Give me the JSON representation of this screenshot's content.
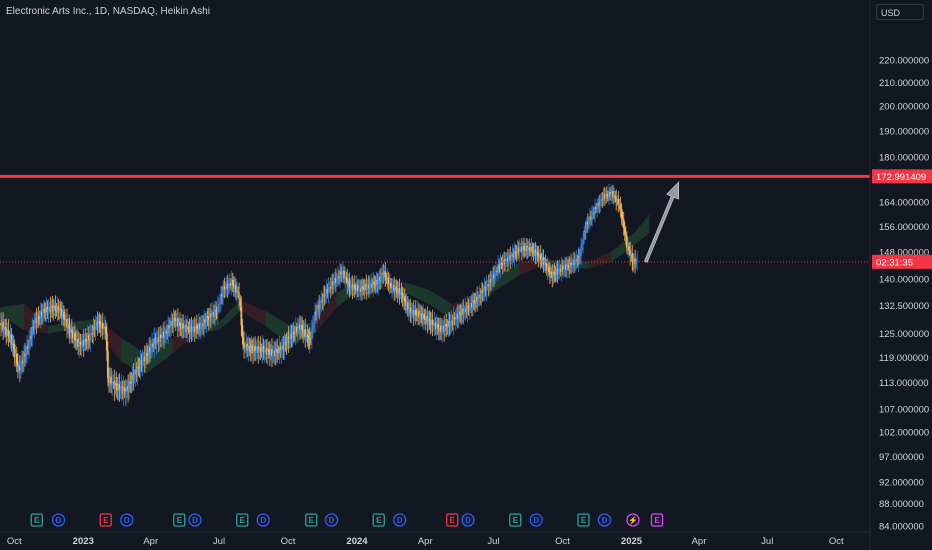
{
  "header": {
    "title": "Electronic Arts Inc., 1D, NASDAQ, Heikin Ashi",
    "currency": "USD"
  },
  "colors": {
    "background": "#131722",
    "candle_up": "#2f7dd9",
    "candle_down": "#f0b657",
    "cloud_green": "#1e3b2c",
    "cloud_red": "#3b1e24",
    "resistance_line": "#f23645",
    "arrow": "#9598a1",
    "earnings": "#26a69a",
    "earnings_red": "#f23645",
    "dividend": "#2962ff",
    "split": "#e040fb"
  },
  "price_labels": {
    "resistance": "172.991409",
    "countdown": "02:31:35"
  },
  "events": [
    {
      "type": "E",
      "x": "2022-10-31",
      "kind": "earnings"
    },
    {
      "type": "D",
      "x": "2022-11-29",
      "kind": "dividend"
    },
    {
      "type": "E",
      "x": "2023-01-31",
      "kind": "earnings_red"
    },
    {
      "type": "D",
      "x": "2023-02-28",
      "kind": "dividend"
    },
    {
      "type": "E",
      "x": "2023-05-09",
      "kind": "earnings"
    },
    {
      "type": "D",
      "x": "2023-05-30",
      "kind": "dividend"
    },
    {
      "type": "E",
      "x": "2023-08-01",
      "kind": "earnings"
    },
    {
      "type": "D",
      "x": "2023-08-29",
      "kind": "dividend"
    },
    {
      "type": "E",
      "x": "2023-11-01",
      "kind": "earnings"
    },
    {
      "type": "D",
      "x": "2023-11-28",
      "kind": "dividend"
    },
    {
      "type": "E",
      "x": "2024-01-30",
      "kind": "earnings"
    },
    {
      "type": "D",
      "x": "2024-02-27",
      "kind": "dividend"
    },
    {
      "type": "E",
      "x": "2024-05-07",
      "kind": "earnings_red"
    },
    {
      "type": "D",
      "x": "2024-05-28",
      "kind": "dividend"
    },
    {
      "type": "E",
      "x": "2024-07-30",
      "kind": "earnings"
    },
    {
      "type": "D",
      "x": "2024-08-27",
      "kind": "dividend"
    },
    {
      "type": "E",
      "x": "2024-10-29",
      "kind": "earnings"
    },
    {
      "type": "D",
      "x": "2024-11-26",
      "kind": "dividend"
    },
    {
      "type": "S",
      "x": "2025-01-03",
      "kind": "split"
    },
    {
      "type": "E",
      "x": "2025-02-04",
      "kind": "split"
    }
  ],
  "chart_data": {
    "type": "line",
    "title": "Electronic Arts Inc., 1D, NASDAQ, Heikin Ashi",
    "xlabel": "",
    "ylabel": "",
    "scale": "log",
    "x_ticks": [
      {
        "label": "Oct",
        "date": "2022-10-01",
        "bold": false
      },
      {
        "label": "2023",
        "date": "2023-01-01",
        "bold": true
      },
      {
        "label": "Apr",
        "date": "2023-04-01",
        "bold": false
      },
      {
        "label": "Jul",
        "date": "2023-07-01",
        "bold": false
      },
      {
        "label": "Oct",
        "date": "2023-10-01",
        "bold": false
      },
      {
        "label": "2024",
        "date": "2024-01-01",
        "bold": true
      },
      {
        "label": "Apr",
        "date": "2024-04-01",
        "bold": false
      },
      {
        "label": "Jul",
        "date": "2024-07-01",
        "bold": false
      },
      {
        "label": "Oct",
        "date": "2024-10-01",
        "bold": false
      },
      {
        "label": "2025",
        "date": "2025-01-01",
        "bold": true
      },
      {
        "label": "Apr",
        "date": "2025-04-01",
        "bold": false
      },
      {
        "label": "Jul",
        "date": "2025-07-01",
        "bold": false
      },
      {
        "label": "Oct",
        "date": "2025-10-01",
        "bold": false
      }
    ],
    "y_ticks": [
      "220.000000",
      "210.000000",
      "200.000000",
      "190.000000",
      "180.000000",
      "172.000000",
      "164.000000",
      "156.000000",
      "148.000000",
      "140.000000",
      "132.500000",
      "125.000000",
      "119.000000",
      "113.000000",
      "107.000000",
      "102.000000",
      "97.000000",
      "92.000000",
      "88.000000",
      "84.000000"
    ],
    "ylim": [
      83,
      235
    ],
    "xlim": [
      "2022-09-12",
      "2025-11-15"
    ],
    "series": [
      {
        "type": "heikin_ashi_close",
        "points": [
          [
            "2022-09-12",
            128
          ],
          [
            "2022-09-26",
            124
          ],
          [
            "2022-10-07",
            116
          ],
          [
            "2022-10-18",
            121
          ],
          [
            "2022-10-28",
            128
          ],
          [
            "2022-11-10",
            131
          ],
          [
            "2022-11-22",
            132
          ],
          [
            "2022-12-02",
            131
          ],
          [
            "2022-12-14",
            126
          ],
          [
            "2022-12-27",
            122
          ],
          [
            "2023-01-09",
            124
          ],
          [
            "2023-01-20",
            128
          ],
          [
            "2023-01-31",
            126
          ],
          [
            "2023-02-03",
            114
          ],
          [
            "2023-02-14",
            112
          ],
          [
            "2023-02-27",
            111
          ],
          [
            "2023-03-10",
            115
          ],
          [
            "2023-03-24",
            119
          ],
          [
            "2023-04-06",
            123
          ],
          [
            "2023-04-20",
            125
          ],
          [
            "2023-05-03",
            129
          ],
          [
            "2023-05-10",
            127
          ],
          [
            "2023-05-24",
            126
          ],
          [
            "2023-06-07",
            127
          ],
          [
            "2023-06-16",
            129
          ],
          [
            "2023-06-28",
            131
          ],
          [
            "2023-07-07",
            137
          ],
          [
            "2023-07-18",
            139
          ],
          [
            "2023-07-28",
            135
          ],
          [
            "2023-08-02",
            122
          ],
          [
            "2023-08-14",
            121
          ],
          [
            "2023-08-28",
            121
          ],
          [
            "2023-09-11",
            120
          ],
          [
            "2023-09-22",
            121
          ],
          [
            "2023-10-03",
            124
          ],
          [
            "2023-10-17",
            127
          ],
          [
            "2023-10-30",
            123
          ],
          [
            "2023-11-06",
            130
          ],
          [
            "2023-11-20",
            136
          ],
          [
            "2023-12-01",
            139
          ],
          [
            "2023-12-12",
            142
          ],
          [
            "2023-12-22",
            138
          ],
          [
            "2024-01-05",
            137
          ],
          [
            "2024-01-17",
            138
          ],
          [
            "2024-01-29",
            139
          ],
          [
            "2024-02-05",
            142
          ],
          [
            "2024-02-14",
            138
          ],
          [
            "2024-02-28",
            136
          ],
          [
            "2024-03-11",
            131
          ],
          [
            "2024-03-25",
            130
          ],
          [
            "2024-04-08",
            128
          ],
          [
            "2024-04-22",
            126
          ],
          [
            "2024-05-06",
            128
          ],
          [
            "2024-05-16",
            130
          ],
          [
            "2024-05-29",
            132
          ],
          [
            "2024-06-12",
            135
          ],
          [
            "2024-06-26",
            139
          ],
          [
            "2024-07-09",
            144
          ],
          [
            "2024-07-22",
            146
          ],
          [
            "2024-08-05",
            149
          ],
          [
            "2024-08-19",
            149
          ],
          [
            "2024-09-03",
            146
          ],
          [
            "2024-09-16",
            141
          ],
          [
            "2024-09-30",
            143
          ],
          [
            "2024-10-11",
            144
          ],
          [
            "2024-10-23",
            146
          ],
          [
            "2024-11-01",
            156
          ],
          [
            "2024-11-12",
            161
          ],
          [
            "2024-11-25",
            166
          ],
          [
            "2024-12-06",
            167
          ],
          [
            "2024-12-16",
            163
          ],
          [
            "2024-12-26",
            150
          ],
          [
            "2025-01-03",
            145
          ],
          [
            "2025-01-10",
            145
          ]
        ]
      },
      {
        "type": "ichimoku_cloud",
        "points": [
          [
            "2022-09-12",
            130,
            132
          ],
          [
            "2022-10-14",
            126,
            133
          ],
          [
            "2022-11-15",
            125,
            127
          ],
          [
            "2022-12-15",
            126,
            128
          ],
          [
            "2023-01-20",
            126,
            129
          ],
          [
            "2023-02-20",
            118,
            124
          ],
          [
            "2023-03-25",
            115,
            120
          ],
          [
            "2023-04-30",
            120,
            124
          ],
          [
            "2023-06-01",
            125,
            128
          ],
          [
            "2023-07-01",
            126,
            128
          ],
          [
            "2023-07-30",
            131,
            134
          ],
          [
            "2023-09-01",
            127,
            131
          ],
          [
            "2023-10-05",
            122,
            127
          ],
          [
            "2023-11-05",
            125,
            128
          ],
          [
            "2023-12-05",
            132,
            136
          ],
          [
            "2024-01-05",
            137,
            140
          ],
          [
            "2024-02-05",
            137,
            141
          ],
          [
            "2024-03-05",
            136,
            139
          ],
          [
            "2024-04-05",
            133,
            137
          ],
          [
            "2024-05-05",
            129,
            133
          ],
          [
            "2024-06-05",
            131,
            134
          ],
          [
            "2024-07-05",
            137,
            141
          ],
          [
            "2024-08-05",
            141,
            145
          ],
          [
            "2024-09-05",
            144,
            146
          ],
          [
            "2024-10-05",
            143,
            145
          ],
          [
            "2024-11-05",
            143,
            145
          ],
          [
            "2024-12-05",
            145,
            148
          ],
          [
            "2025-01-05",
            150,
            154
          ],
          [
            "2025-01-25",
            154,
            160
          ]
        ]
      },
      {
        "type": "horizontal_line",
        "y": 172.991409
      },
      {
        "type": "arrow",
        "from": [
          "2025-01-20",
          145
        ],
        "to": [
          "2025-03-05",
          171
        ]
      }
    ]
  }
}
